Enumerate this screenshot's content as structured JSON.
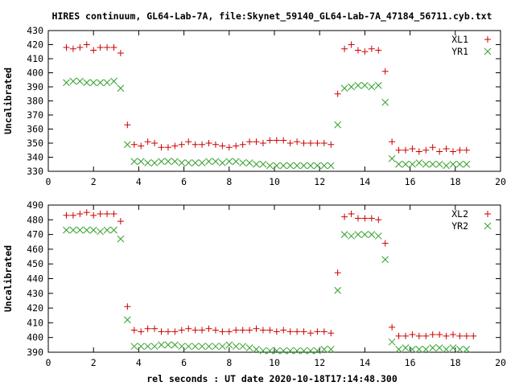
{
  "title": "HIRES continuum, GL64-Lab-7A, file:Skynet_59140_GL64-Lab-7A_47184_56711.cyb.txt",
  "xlabel": "rel seconds : UT date 2020-10-18T17:14:48.300",
  "colors": {
    "red": "#cc0000",
    "green": "#33a02c",
    "axis": "#000000"
  },
  "chart_data": [
    {
      "type": "scatter",
      "ylabel": "Uncalibrated",
      "xlim": [
        0,
        20
      ],
      "ylim": [
        330,
        430
      ],
      "xticks": [
        0,
        2,
        4,
        6,
        8,
        10,
        12,
        14,
        16,
        18,
        20
      ],
      "yticks": [
        330,
        340,
        350,
        360,
        370,
        380,
        390,
        400,
        410,
        420,
        430
      ],
      "legend_position": "top-right",
      "series": [
        {
          "name": "XL1",
          "marker": "plus",
          "color": "#cc0000",
          "x": [
            0.8,
            1.1,
            1.4,
            1.7,
            2.0,
            2.3,
            2.6,
            2.9,
            3.2,
            3.5,
            3.8,
            4.1,
            4.4,
            4.7,
            5.0,
            5.3,
            5.6,
            5.9,
            6.2,
            6.5,
            6.8,
            7.1,
            7.4,
            7.7,
            8.0,
            8.3,
            8.6,
            8.9,
            9.2,
            9.5,
            9.8,
            10.1,
            10.4,
            10.7,
            11.0,
            11.3,
            11.6,
            11.9,
            12.2,
            12.5,
            12.8,
            13.1,
            13.4,
            13.7,
            14.0,
            14.3,
            14.6,
            14.9,
            15.2,
            15.5,
            15.8,
            16.1,
            16.4,
            16.7,
            17.0,
            17.3,
            17.6,
            17.9,
            18.2,
            18.5,
            18.8
          ],
          "y": [
            418,
            417,
            418,
            420,
            416,
            418,
            418,
            418,
            414,
            363,
            349,
            348,
            351,
            350,
            347,
            347,
            348,
            349,
            351,
            349,
            349,
            350,
            349,
            348,
            347,
            348,
            349,
            351,
            351,
            350,
            352,
            352,
            352,
            350,
            351,
            350,
            350,
            350,
            350,
            349,
            385,
            417,
            420,
            416,
            415,
            417,
            416,
            401,
            351,
            345,
            345,
            346,
            344,
            345,
            347,
            344,
            346,
            344,
            345,
            345,
            null
          ]
        },
        {
          "name": "YR1",
          "marker": "cross",
          "color": "#33a02c",
          "x": [
            0.8,
            1.1,
            1.4,
            1.7,
            2.0,
            2.3,
            2.6,
            2.9,
            3.2,
            3.5,
            3.8,
            4.1,
            4.4,
            4.7,
            5.0,
            5.3,
            5.6,
            5.9,
            6.2,
            6.5,
            6.8,
            7.1,
            7.4,
            7.7,
            8.0,
            8.3,
            8.6,
            8.9,
            9.2,
            9.5,
            9.8,
            10.1,
            10.4,
            10.7,
            11.0,
            11.3,
            11.6,
            11.9,
            12.2,
            12.5,
            12.8,
            13.1,
            13.4,
            13.7,
            14.0,
            14.3,
            14.6,
            14.9,
            15.2,
            15.5,
            15.8,
            16.1,
            16.4,
            16.7,
            17.0,
            17.3,
            17.6,
            17.9,
            18.2,
            18.5,
            18.8
          ],
          "y": [
            393,
            394,
            394,
            393,
            393,
            393,
            393,
            394,
            389,
            349,
            337,
            337,
            336,
            336,
            337,
            337,
            337,
            336,
            336,
            336,
            336,
            337,
            337,
            336,
            337,
            337,
            336,
            336,
            335,
            335,
            334,
            334,
            334,
            334,
            334,
            334,
            334,
            334,
            334,
            334,
            363,
            389,
            390,
            391,
            391,
            390,
            391,
            379,
            339,
            335,
            335,
            335,
            336,
            335,
            335,
            335,
            334,
            335,
            335,
            335,
            null
          ]
        }
      ]
    },
    {
      "type": "scatter",
      "ylabel": "Uncalibrated",
      "xlim": [
        0,
        20
      ],
      "ylim": [
        390,
        490
      ],
      "xticks": [
        0,
        2,
        4,
        6,
        8,
        10,
        12,
        14,
        16,
        18,
        20
      ],
      "yticks": [
        390,
        400,
        410,
        420,
        430,
        440,
        450,
        460,
        470,
        480,
        490
      ],
      "legend_position": "top-right",
      "series": [
        {
          "name": "XL2",
          "marker": "plus",
          "color": "#cc0000",
          "x": [
            0.8,
            1.1,
            1.4,
            1.7,
            2.0,
            2.3,
            2.6,
            2.9,
            3.2,
            3.5,
            3.8,
            4.1,
            4.4,
            4.7,
            5.0,
            5.3,
            5.6,
            5.9,
            6.2,
            6.5,
            6.8,
            7.1,
            7.4,
            7.7,
            8.0,
            8.3,
            8.6,
            8.9,
            9.2,
            9.5,
            9.8,
            10.1,
            10.4,
            10.7,
            11.0,
            11.3,
            11.6,
            11.9,
            12.2,
            12.5,
            12.8,
            13.1,
            13.4,
            13.7,
            14.0,
            14.3,
            14.6,
            14.9,
            15.2,
            15.5,
            15.8,
            16.1,
            16.4,
            16.7,
            17.0,
            17.3,
            17.6,
            17.9,
            18.2,
            18.5,
            18.8
          ],
          "y": [
            483,
            483,
            484,
            485,
            483,
            484,
            484,
            484,
            479,
            421,
            405,
            404,
            406,
            406,
            404,
            404,
            404,
            405,
            406,
            405,
            405,
            406,
            405,
            404,
            404,
            405,
            405,
            405,
            406,
            405,
            405,
            404,
            405,
            404,
            404,
            404,
            403,
            404,
            404,
            403,
            444,
            482,
            484,
            481,
            481,
            481,
            480,
            464,
            407,
            401,
            401,
            402,
            401,
            401,
            402,
            402,
            401,
            402,
            401,
            401,
            401
          ]
        },
        {
          "name": "YR2",
          "marker": "cross",
          "color": "#33a02c",
          "x": [
            0.8,
            1.1,
            1.4,
            1.7,
            2.0,
            2.3,
            2.6,
            2.9,
            3.2,
            3.5,
            3.8,
            4.1,
            4.4,
            4.7,
            5.0,
            5.3,
            5.6,
            5.9,
            6.2,
            6.5,
            6.8,
            7.1,
            7.4,
            7.7,
            8.0,
            8.3,
            8.6,
            8.9,
            9.2,
            9.5,
            9.8,
            10.1,
            10.4,
            10.7,
            11.0,
            11.3,
            11.6,
            11.9,
            12.2,
            12.5,
            12.8,
            13.1,
            13.4,
            13.7,
            14.0,
            14.3,
            14.6,
            14.9,
            15.2,
            15.5,
            15.8,
            16.1,
            16.4,
            16.7,
            17.0,
            17.3,
            17.6,
            17.9,
            18.2,
            18.5,
            18.8
          ],
          "y": [
            473,
            473,
            473,
            473,
            473,
            472,
            473,
            473,
            467,
            412,
            394,
            394,
            394,
            394,
            395,
            395,
            395,
            394,
            394,
            394,
            394,
            394,
            394,
            394,
            395,
            394,
            394,
            393,
            392,
            391,
            391,
            391,
            391,
            391,
            391,
            391,
            391,
            391,
            392,
            392,
            432,
            470,
            469,
            470,
            470,
            470,
            469,
            453,
            397,
            392,
            393,
            392,
            392,
            392,
            393,
            393,
            392,
            393,
            392,
            392,
            null
          ]
        }
      ]
    }
  ]
}
